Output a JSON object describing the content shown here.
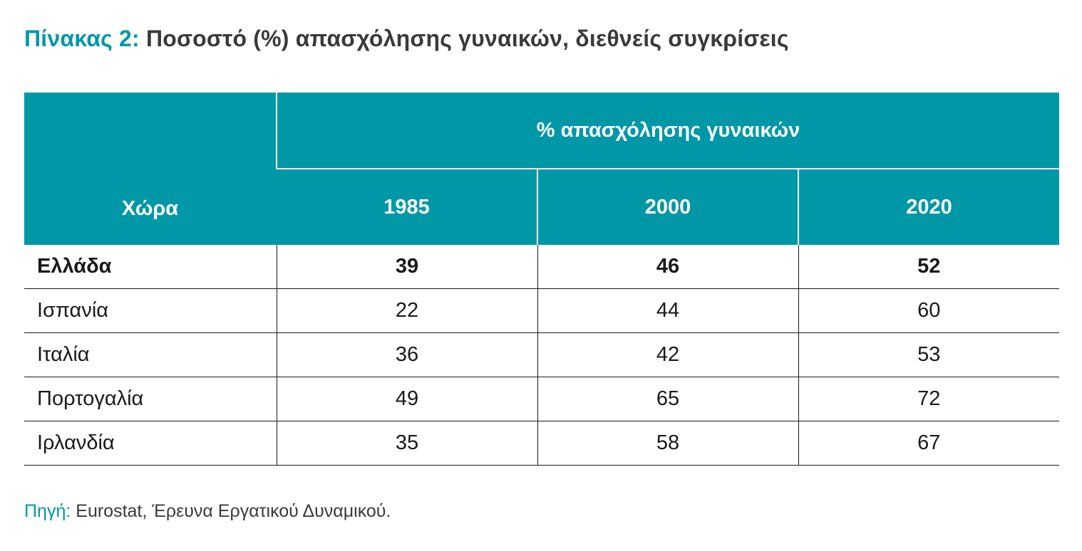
{
  "title": {
    "prefix": "Πίνακας 2:",
    "text": "Ποσοστό (%) απασχόλησης γυναικών, διεθνείς συγκρίσεις"
  },
  "table": {
    "country_header": "Χώρα",
    "group_header": "% απασχόλησης γυναικών",
    "years": [
      "1985",
      "2000",
      "2020"
    ],
    "rows": [
      {
        "country": "Ελλάδα",
        "values": [
          "39",
          "46",
          "52"
        ],
        "bold": true
      },
      {
        "country": "Ισπανία",
        "values": [
          "22",
          "44",
          "60"
        ],
        "bold": false
      },
      {
        "country": "Ιταλία",
        "values": [
          "36",
          "42",
          "53"
        ],
        "bold": false
      },
      {
        "country": "Πορτογαλία",
        "values": [
          "49",
          "65",
          "72"
        ],
        "bold": false
      },
      {
        "country": "Ιρλανδία",
        "values": [
          "35",
          "58",
          "67"
        ],
        "bold": false
      }
    ]
  },
  "source": {
    "label": "Πηγή:",
    "text": "Eurostat, Έρευνα Εργατικού Δυναμικού."
  },
  "colors": {
    "accent": "#0097a7",
    "text": "#1a1a1a",
    "title_text": "#3a3a3a"
  }
}
